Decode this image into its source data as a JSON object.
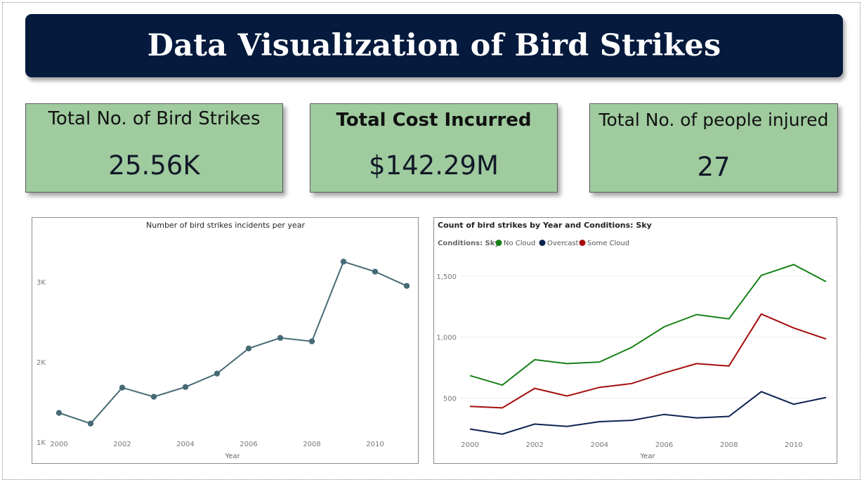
{
  "header": {
    "title": "Data Visualization of Bird Strikes"
  },
  "kpis": [
    {
      "label": "Total No. of Bird Strikes",
      "value": "25.56K"
    },
    {
      "label": "Total Cost Incurred",
      "value": "$142.29M"
    },
    {
      "label": "Total No. of people injured",
      "value": "27"
    }
  ],
  "colors": {
    "banner": "#051a3d",
    "kpi_background": "#9fcb9f",
    "line_single": "#466a75",
    "no_cloud": "#158015",
    "overcast": "#0c2350",
    "some_cloud": "#a50d0d"
  },
  "chart_data": [
    {
      "type": "line",
      "title": "Number of bird strikes incidents per year",
      "xlabel": "Year",
      "ylabel": "",
      "x": [
        2000,
        2001,
        2002,
        2003,
        2004,
        2005,
        2006,
        2007,
        2008,
        2009,
        2010,
        2011
      ],
      "values": [
        1363,
        1230,
        1679,
        1565,
        1687,
        1855,
        2169,
        2301,
        2258,
        3254,
        3129,
        2951
      ],
      "xticks": [
        "2000",
        "2002",
        "2004",
        "2006",
        "2008",
        "2010"
      ],
      "yticks": [
        "1K",
        "2K",
        "3K"
      ],
      "ylim": [
        990,
        3450
      ],
      "markers": true,
      "grid": false
    },
    {
      "type": "line",
      "title": "Count of bird strikes by Year and Conditions: Sky",
      "legend_title": "Conditions: Sky",
      "legend_position": "top-left",
      "xlabel": "Year",
      "ylabel": "",
      "x": [
        2000,
        2001,
        2002,
        2003,
        2004,
        2005,
        2006,
        2007,
        2008,
        2009,
        2010,
        2011
      ],
      "series": [
        {
          "name": "No Cloud",
          "values": [
            685,
            607,
            815,
            783,
            796,
            917,
            1085,
            1185,
            1150,
            1507,
            1595,
            1455
          ]
        },
        {
          "name": "Overcast",
          "values": [
            246,
            205,
            287,
            268,
            307,
            318,
            366,
            338,
            350,
            553,
            450,
            505
          ]
        },
        {
          "name": "Some Cloud",
          "values": [
            432,
            420,
            580,
            517,
            588,
            620,
            706,
            783,
            763,
            1190,
            1075,
            985
          ]
        }
      ],
      "xticks": [
        "2000",
        "2002",
        "2004",
        "2006",
        "2008",
        "2010"
      ],
      "yticks": [
        "500",
        "1,000",
        "1,500"
      ],
      "ylim": [
        180,
        1690
      ],
      "grid": true
    }
  ]
}
